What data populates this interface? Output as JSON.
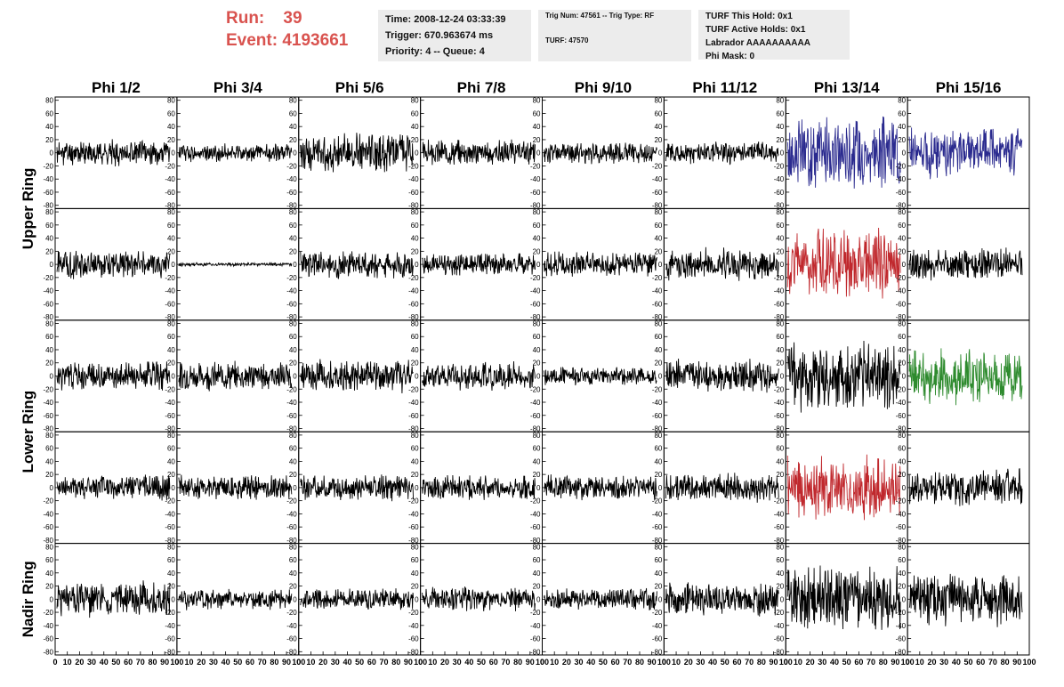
{
  "run_info": {
    "run_label": "Run:",
    "run_value": "39",
    "event_label": "Event:",
    "event_value": "4193661"
  },
  "box1": {
    "time": "Time: 2008-12-24 03:33:39",
    "trigger": "Trigger: 670.963674 ms",
    "priority": "Priority: 4 -- Queue: 4"
  },
  "box2": {
    "trig": "Trig Num: 47561 -- Trig Type: RF",
    "turf": "TURF: 47570"
  },
  "box3": {
    "hold": "TURF This Hold: 0x1",
    "active": "TURF Active Holds: 0x1",
    "labrador": "Labrador AAAAAAAAAA",
    "phimask": "Phi Mask: 0"
  },
  "colors": {
    "run_text": "#d9534f",
    "box_bg": "#ececec",
    "trace_default": "#000000",
    "trace_blue": "#2b2b8f",
    "trace_red": "#c0282d",
    "trace_green": "#2e8b2e"
  },
  "chart_data": {
    "type": "line",
    "columns": [
      "Phi 1/2",
      "Phi 3/4",
      "Phi 5/6",
      "Phi 7/8",
      "Phi 9/10",
      "Phi 11/12",
      "Phi 13/14",
      "Phi 15/16"
    ],
    "row_labels": [
      "Upper Ring",
      "Lower Ring",
      "Nadir Ring"
    ],
    "ylim": [
      -85,
      85
    ],
    "yticks": [
      -80,
      -60,
      -40,
      -20,
      0,
      20,
      40,
      60,
      80
    ],
    "xlim": [
      0,
      100
    ],
    "xtick_labels": [
      "0",
      "10",
      "20",
      "30",
      "40",
      "50",
      "60",
      "70",
      "80",
      "90",
      "100"
    ],
    "grid": false,
    "n_samples": 260,
    "panels": [
      [
        {
          "amp": 14,
          "color": "default",
          "seed": 11
        },
        {
          "amp": 10,
          "color": "default",
          "seed": 12
        },
        {
          "amp": 22,
          "color": "default",
          "seed": 13
        },
        {
          "amp": 14,
          "color": "default",
          "seed": 14
        },
        {
          "amp": 12,
          "color": "default",
          "seed": 15
        },
        {
          "amp": 12,
          "color": "default",
          "seed": 16
        },
        {
          "amp": 40,
          "color": "blue",
          "seed": 17
        },
        {
          "amp": 28,
          "color": "blue",
          "seed": 18
        }
      ],
      [
        {
          "amp": 16,
          "color": "default",
          "seed": 21
        },
        {
          "amp": 2,
          "color": "default",
          "seed": 22
        },
        {
          "amp": 16,
          "color": "default",
          "seed": 23
        },
        {
          "amp": 12,
          "color": "default",
          "seed": 24
        },
        {
          "amp": 14,
          "color": "default",
          "seed": 25
        },
        {
          "amp": 18,
          "color": "default",
          "seed": 26
        },
        {
          "amp": 38,
          "color": "red",
          "seed": 27
        },
        {
          "amp": 18,
          "color": "default",
          "seed": 28
        }
      ],
      [
        {
          "amp": 16,
          "color": "default",
          "seed": 31
        },
        {
          "amp": 16,
          "color": "default",
          "seed": 32
        },
        {
          "amp": 18,
          "color": "default",
          "seed": 33
        },
        {
          "amp": 16,
          "color": "default",
          "seed": 34
        },
        {
          "amp": 10,
          "color": "default",
          "seed": 35
        },
        {
          "amp": 18,
          "color": "default",
          "seed": 36
        },
        {
          "amp": 40,
          "color": "default",
          "seed": 37
        },
        {
          "amp": 30,
          "color": "green",
          "seed": 38
        }
      ],
      [
        {
          "amp": 14,
          "color": "default",
          "seed": 41
        },
        {
          "amp": 14,
          "color": "default",
          "seed": 42
        },
        {
          "amp": 14,
          "color": "default",
          "seed": 43
        },
        {
          "amp": 14,
          "color": "default",
          "seed": 44
        },
        {
          "amp": 14,
          "color": "default",
          "seed": 45
        },
        {
          "amp": 16,
          "color": "default",
          "seed": 46
        },
        {
          "amp": 34,
          "color": "red",
          "seed": 47
        },
        {
          "amp": 22,
          "color": "default",
          "seed": 48
        }
      ],
      [
        {
          "amp": 20,
          "color": "default",
          "seed": 51
        },
        {
          "amp": 12,
          "color": "default",
          "seed": 52
        },
        {
          "amp": 12,
          "color": "default",
          "seed": 53
        },
        {
          "amp": 14,
          "color": "default",
          "seed": 54
        },
        {
          "amp": 12,
          "color": "default",
          "seed": 55
        },
        {
          "amp": 18,
          "color": "default",
          "seed": 56
        },
        {
          "amp": 36,
          "color": "default",
          "seed": 57
        },
        {
          "amp": 30,
          "color": "default",
          "seed": 58
        }
      ]
    ]
  }
}
